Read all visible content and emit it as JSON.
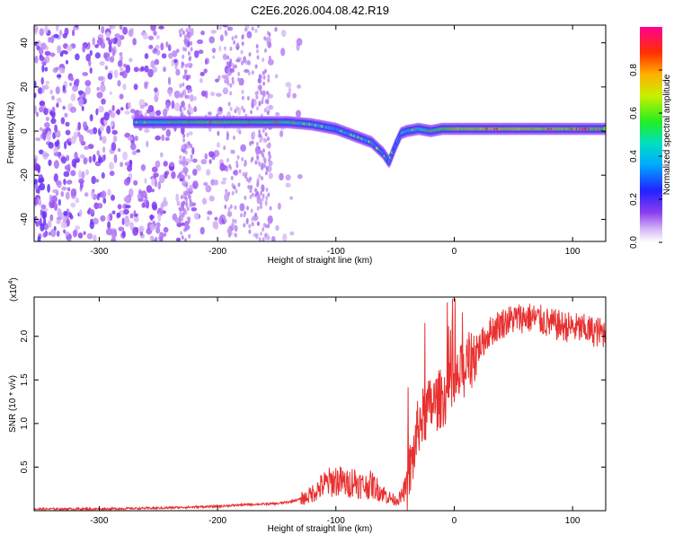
{
  "title": "C2E6.2026.004.08.42.R19",
  "chart_data": [
    {
      "type": "heatmap",
      "xlabel": "Height of straight line (km)",
      "ylabel": "Frequency (Hz)",
      "xlim": [
        -355,
        128
      ],
      "ylim": [
        -50,
        48
      ],
      "xticks": [
        -300,
        -200,
        -100,
        0,
        100
      ],
      "yticks": [
        -40,
        -20,
        0,
        20,
        40
      ],
      "xtick_labels": [
        "-300",
        "-200",
        "-100",
        "0",
        "100"
      ],
      "ytick_labels": [
        "-40",
        "-20",
        "0",
        "20",
        "40"
      ],
      "colorbar": {
        "label": "Normalized spectral amplitude",
        "range": [
          0,
          1
        ],
        "ticks": [
          0.0,
          0.2,
          0.4,
          0.6,
          0.8
        ],
        "tick_labels": [
          "0.0",
          "0.2",
          "0.4",
          "0.6",
          "0.8"
        ]
      },
      "ridge": {
        "x": [
          -270,
          -240,
          -200,
          -160,
          -140,
          -120,
          -100,
          -85,
          -70,
          -60,
          -55,
          -50,
          -45,
          -40,
          -30,
          -20,
          -10,
          0,
          20,
          60,
          100,
          128
        ],
        "frequency": [
          4,
          4,
          4,
          4,
          4,
          3,
          1,
          -2,
          -5,
          -10,
          -14,
          -7,
          -1,
          0,
          1,
          0,
          1,
          1,
          1,
          1,
          1,
          1
        ],
        "amplitude": [
          0.6,
          0.7,
          0.8,
          0.75,
          0.7,
          0.6,
          0.5,
          0.55,
          0.55,
          0.5,
          0.45,
          0.45,
          0.5,
          0.6,
          0.65,
          0.75,
          0.8,
          0.9,
          0.95,
          0.95,
          0.9,
          0.85
        ]
      }
    },
    {
      "type": "line",
      "xlabel": "Height of straight line (km)",
      "ylabel": "SNR (10 * v/v)",
      "yscale_label": "(x10",
      "yscale_exponent": "4",
      "yscale_suffix": ")",
      "xlim": [
        -355,
        128
      ],
      "ylim": [
        0,
        2.45
      ],
      "xticks": [
        -300,
        -200,
        -100,
        0,
        100
      ],
      "yticks": [
        0.5,
        1.0,
        1.5,
        2.0
      ],
      "xtick_labels": [
        "-300",
        "-200",
        "-100",
        "0",
        "100"
      ],
      "ytick_labels": [
        "0.5",
        "1.0",
        "1.5",
        "2.0"
      ],
      "color": "#e83030",
      "series": [
        {
          "x": [
            -355,
            -300,
            -250,
            -200,
            -175,
            -150,
            -140,
            -125,
            -110,
            -100,
            -95,
            -90,
            -85,
            -80,
            -75,
            -70,
            -65,
            -60,
            -55,
            -50,
            -45,
            -40,
            -35,
            -30,
            -25,
            -20,
            -15,
            -10,
            -5,
            0,
            5,
            10,
            20,
            30,
            40,
            50,
            60,
            70,
            80,
            90,
            100,
            110,
            120,
            128
          ],
          "y": [
            0.02,
            0.02,
            0.03,
            0.05,
            0.07,
            0.08,
            0.1,
            0.15,
            0.3,
            0.35,
            0.33,
            0.3,
            0.35,
            0.3,
            0.28,
            0.3,
            0.25,
            0.2,
            0.15,
            0.12,
            0.15,
            0.3,
            0.6,
            1.0,
            1.1,
            1.2,
            1.25,
            1.3,
            1.35,
            1.4,
            1.55,
            1.65,
            1.85,
            2.05,
            2.15,
            2.2,
            2.22,
            2.2,
            2.15,
            2.12,
            2.1,
            2.08,
            2.05,
            2.04
          ]
        }
      ]
    }
  ]
}
